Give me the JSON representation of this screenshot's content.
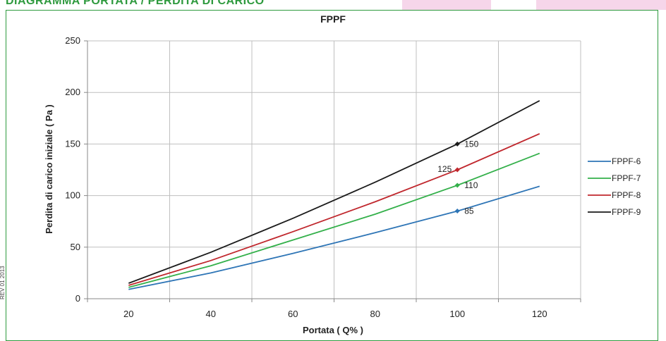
{
  "header": {
    "title": "DIAGRAMMA PORTATA / PERDITA DI CARICO",
    "side_note": "REV 01 2013"
  },
  "colors": {
    "frame": "#2e9a3e",
    "header_text": "#2e9a3e",
    "grid": "#bfbfbf"
  },
  "chart_data": {
    "type": "line",
    "title": "FPPF",
    "xlabel": "Portata  ( Q% )",
    "ylabel": "Perdita di carico iniziale ( Pa )",
    "xlim": [
      10,
      130
    ],
    "ylim": [
      0,
      250
    ],
    "x_ticks": [
      20,
      40,
      60,
      80,
      100,
      120
    ],
    "y_ticks": [
      0,
      50,
      100,
      150,
      200,
      250
    ],
    "x_gridlines": [
      10,
      30,
      50,
      70,
      90,
      110,
      130
    ],
    "grid": true,
    "legend_position": "right",
    "x": [
      20,
      40,
      60,
      80,
      100,
      120
    ],
    "series": [
      {
        "name": "FPPF-6",
        "color": "#2e75b6",
        "values": [
          9,
          25,
          44,
          64,
          85,
          109
        ]
      },
      {
        "name": "FPPF-7",
        "color": "#33b04a",
        "values": [
          11,
          32,
          57,
          82,
          110,
          141
        ]
      },
      {
        "name": "FPPF-8",
        "color": "#c0272d",
        "values": [
          13,
          37,
          65,
          94,
          125,
          160
        ]
      },
      {
        "name": "FPPF-9",
        "color": "#1a1a1a",
        "values": [
          15,
          45,
          78,
          113,
          150,
          192
        ]
      }
    ],
    "data_labels": [
      {
        "series": "FPPF-9",
        "x": 100,
        "y": 150,
        "text": "150"
      },
      {
        "series": "FPPF-8",
        "x": 100,
        "y": 125,
        "text": "125"
      },
      {
        "series": "FPPF-7",
        "x": 100,
        "y": 110,
        "text": "110"
      },
      {
        "series": "FPPF-6",
        "x": 100,
        "y": 85,
        "text": "85"
      }
    ]
  }
}
